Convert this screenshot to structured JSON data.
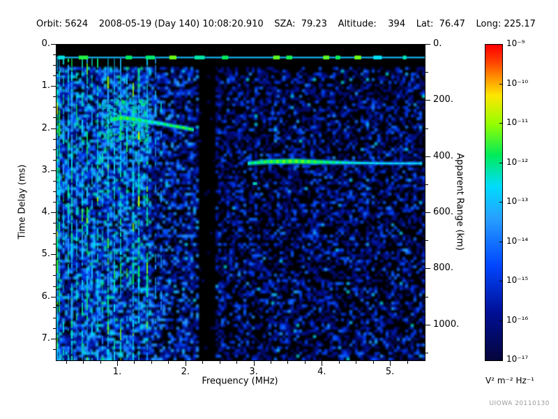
{
  "header": {
    "orbit": "Orbit: 5624",
    "datetime": "2008-05-19 (Day 140) 10:08:20.910",
    "sza": "SZA:  79.23",
    "altitude": "Altitude:    394",
    "lat": "Lat:  76.47",
    "long": "Long: 225.17"
  },
  "footer": {
    "watermark": "UIOWA 20110130"
  },
  "colorbar": {
    "unit": "V² m⁻² Hz⁻¹",
    "tick_labels": [
      "10⁻⁹",
      "10⁻¹⁰",
      "10⁻¹¹",
      "10⁻¹²",
      "10⁻¹³",
      "10⁻¹⁴",
      "10⁻¹⁵",
      "10⁻¹⁶",
      "10⁻¹⁷"
    ],
    "max_exponent": -9,
    "min_exponent": -17,
    "stops": [
      [
        0,
        5,
        5,
        60
      ],
      [
        0.15,
        0,
        15,
        150
      ],
      [
        0.3,
        0,
        70,
        255
      ],
      [
        0.45,
        40,
        160,
        255
      ],
      [
        0.55,
        0,
        220,
        255
      ],
      [
        0.65,
        0,
        235,
        90
      ],
      [
        0.75,
        150,
        255,
        0
      ],
      [
        0.84,
        255,
        230,
        0
      ],
      [
        0.9,
        255,
        140,
        0
      ],
      [
        0.95,
        255,
        60,
        0
      ],
      [
        1,
        255,
        0,
        0
      ]
    ]
  },
  "chart_data": {
    "type": "heatmap",
    "title": "",
    "xlabel": "Frequency (MHz)",
    "ylabel_left": "Time Delay (ms)",
    "ylabel_right": "Apparent Range (km)",
    "xlim": [
      0.1,
      5.5
    ],
    "ylim_ms": [
      0,
      7.5
    ],
    "xticks": [
      1,
      2,
      3,
      4,
      5
    ],
    "xtick_labels": [
      "1.",
      "2.",
      "3.",
      "4.",
      "5."
    ],
    "yticks_ms": [
      0,
      1,
      2,
      3,
      4,
      5,
      6,
      7
    ],
    "ytick_labels_left": [
      "0.",
      "1.",
      "2.",
      "3.",
      "4.",
      "5.",
      "6.",
      "7."
    ],
    "yticks_right_km": [
      0,
      200,
      400,
      600,
      800,
      1000
    ],
    "ytick_labels_right": [
      "0.",
      "200.",
      "400.",
      "600.",
      "800.",
      "1000."
    ],
    "range_km_per_ms": 150,
    "background": "#000000",
    "grid": false,
    "features": {
      "top_band_delay_ms": 0.3,
      "blank_column_mhz": [
        2.2,
        2.42
      ],
      "plasma_stripes": [
        {
          "f": 0.11,
          "s": 1.0
        },
        {
          "f": 0.14,
          "s": 0.9
        },
        {
          "f": 0.2,
          "s": 0.7
        },
        {
          "f": 0.27,
          "s": 0.85
        },
        {
          "f": 0.33,
          "s": 0.9
        },
        {
          "f": 0.4,
          "s": 0.6
        },
        {
          "f": 0.48,
          "s": 0.75
        },
        {
          "f": 0.55,
          "s": 0.9
        },
        {
          "f": 0.62,
          "s": 0.6
        },
        {
          "f": 0.7,
          "s": 0.8
        },
        {
          "f": 0.78,
          "s": 0.65
        },
        {
          "f": 0.86,
          "s": 0.9
        },
        {
          "f": 0.95,
          "s": 0.7
        },
        {
          "f": 1.04,
          "s": 0.9
        },
        {
          "f": 1.13,
          "s": 0.65
        },
        {
          "f": 1.22,
          "s": 0.8
        },
        {
          "f": 1.31,
          "s": 0.9
        },
        {
          "f": 1.43,
          "s": 0.85
        },
        {
          "f": 1.55,
          "s": 0.45
        },
        {
          "f": 1.63,
          "s": 0.35
        }
      ],
      "dense_patch": {
        "f": [
          0.78,
          1.48
        ],
        "t": [
          1.3,
          2.3
        ]
      },
      "ionosphere_echo_trace": [
        [
          0.9,
          1.78
        ],
        [
          1.05,
          1.74
        ],
        [
          1.2,
          1.76
        ],
        [
          1.35,
          1.8
        ],
        [
          1.5,
          1.84
        ],
        [
          1.65,
          1.88
        ],
        [
          1.8,
          1.93
        ],
        [
          1.95,
          1.97
        ],
        [
          2.1,
          2.02
        ]
      ],
      "surface_reflection_trace": [
        [
          2.9,
          2.82
        ],
        [
          3.2,
          2.78
        ],
        [
          3.6,
          2.77
        ],
        [
          4.0,
          2.79
        ],
        [
          4.5,
          2.81
        ],
        [
          5.0,
          2.82
        ],
        [
          5.45,
          2.82
        ]
      ],
      "bright_blobs": [
        [
          3.0,
          3.3
        ]
      ],
      "noise": {
        "top_black_ms": 0.5,
        "dense_region_mhz": [
          0.1,
          1.5
        ],
        "mid_region_mhz": [
          1.5,
          2.2
        ],
        "sparse_region_mhz": [
          2.42,
          5.5
        ]
      }
    }
  }
}
